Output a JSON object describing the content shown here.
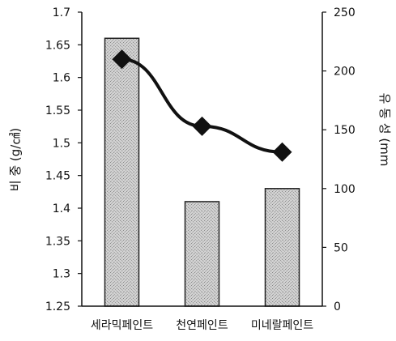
{
  "chart_data": {
    "type": "bar+line",
    "categories": [
      "세라믹페인트",
      "천연페인트",
      "미네랄페인트"
    ],
    "series": [
      {
        "kind": "bar",
        "axis": "left",
        "values": [
          1.66,
          1.41,
          1.43
        ]
      },
      {
        "kind": "line",
        "axis": "right",
        "marker": "diamond",
        "values": [
          210,
          153,
          131
        ]
      }
    ],
    "ylabel_left": "비 중 (g/㎤)",
    "ylabel_right": "유 동 성 (mm",
    "ylim_left": [
      1.25,
      1.7
    ],
    "ylim_right": [
      0,
      250
    ],
    "yticks_left": [
      "1.25",
      "1.3",
      "1.35",
      "1.4",
      "1.45",
      "1.5",
      "1.55",
      "1.6",
      "1.65",
      "1.7"
    ],
    "yticks_right": [
      "0",
      "50",
      "100",
      "150",
      "200",
      "250"
    ],
    "grid": false,
    "legend": "none",
    "colors": {
      "bar_fill": "#cfcfcf",
      "bar_stroke": "#222222",
      "line": "#111111"
    }
  }
}
